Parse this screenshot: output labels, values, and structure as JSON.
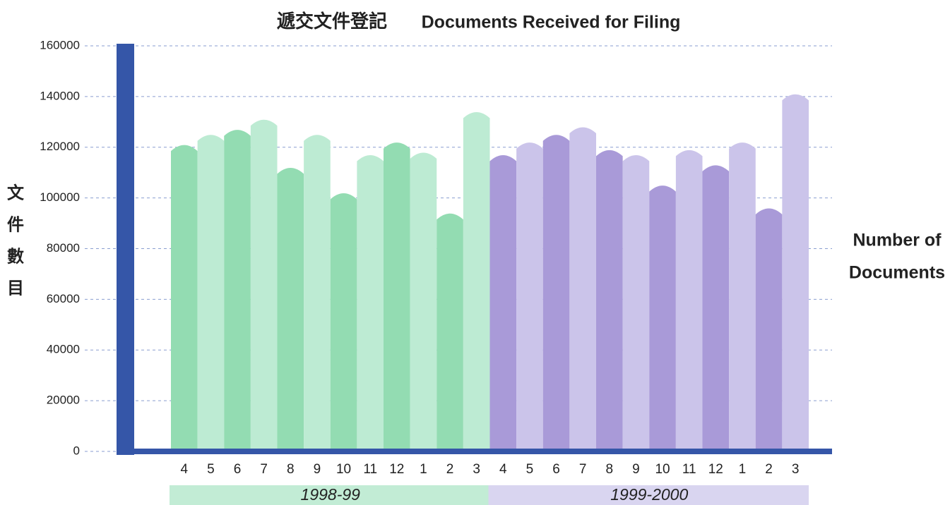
{
  "chart_data": {
    "type": "bar",
    "title_zh": "遞交文件登記",
    "title": "Documents Received for Filing",
    "y_label_zh": [
      "文",
      "件",
      "數",
      "目"
    ],
    "y_label": [
      "Number of",
      "Documents"
    ],
    "categories": [
      "4",
      "5",
      "6",
      "7",
      "8",
      "9",
      "10",
      "11",
      "12",
      "1",
      "2",
      "3"
    ],
    "series": [
      {
        "name": "1998-99",
        "colors": [
          "#93dcb2",
          "#bdebd3"
        ],
        "band_color": "#c2ecd5",
        "values": [
          121000,
          125000,
          127000,
          131000,
          112000,
          125000,
          102000,
          117000,
          122000,
          118000,
          94000,
          134000
        ]
      },
      {
        "name": "1999-2000",
        "colors": [
          "#a99ad8",
          "#cbc4ea"
        ],
        "band_color": "#d9d5f0",
        "values": [
          117000,
          122000,
          125000,
          128000,
          119000,
          117000,
          105000,
          119000,
          113000,
          122000,
          96000,
          141000
        ]
      }
    ],
    "ylim": [
      0,
      160000
    ],
    "yticks": [
      0,
      20000,
      40000,
      60000,
      80000,
      100000,
      120000,
      140000,
      160000
    ],
    "grid": true
  }
}
